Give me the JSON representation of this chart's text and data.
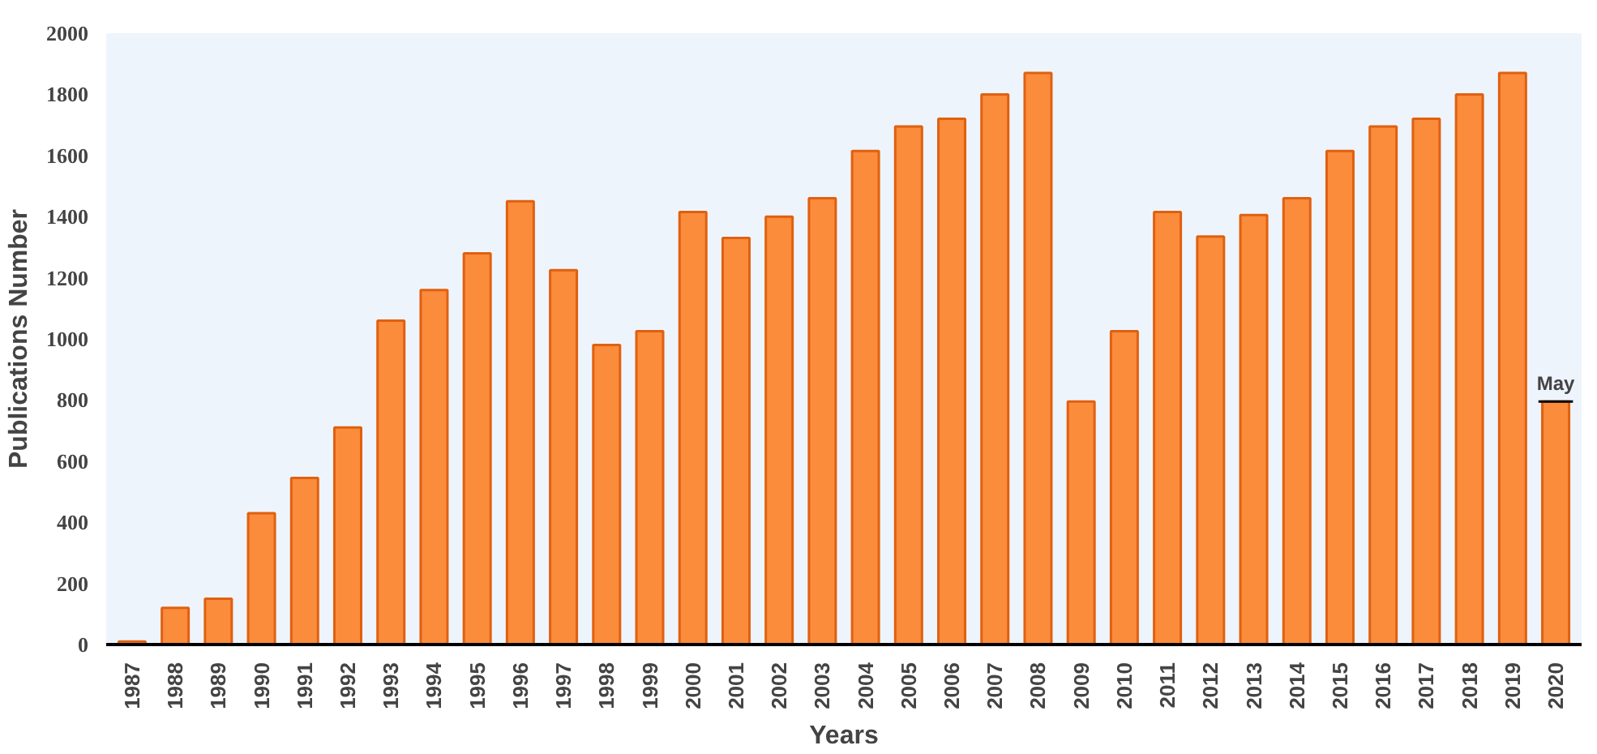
{
  "chart_data": {
    "type": "bar",
    "xlabel": "Years",
    "ylabel": "Publications Number",
    "categories": [
      "1987",
      "1988",
      "1989",
      "1990",
      "1991",
      "1992",
      "1993",
      "1994",
      "1995",
      "1996",
      "1997",
      "1998",
      "1999",
      "2000",
      "2001",
      "2002",
      "2003",
      "2004",
      "2005",
      "2006",
      "2007",
      "2008",
      "2009",
      "2010",
      "2011",
      "2012",
      "2013",
      "2014",
      "2015",
      "2016",
      "2017",
      "2018",
      "2019",
      "2020"
    ],
    "values": [
      10,
      120,
      150,
      430,
      545,
      710,
      1060,
      1160,
      1280,
      1450,
      1225,
      980,
      1025,
      1415,
      1330,
      1400,
      1460,
      1615,
      1695,
      1720,
      1800,
      1870,
      795,
      1025,
      1415,
      1335,
      1405,
      1460,
      1615,
      1695,
      1720,
      1800,
      1870,
      795
    ],
    "color": "#fa8c3c",
    "ylim": [
      0,
      2000
    ],
    "yticks": [
      0,
      200,
      400,
      600,
      800,
      1000,
      1200,
      1400,
      1600,
      1800,
      2000
    ],
    "grid": false,
    "annotations": [
      {
        "text": "May",
        "x": "2020",
        "y": 795
      }
    ]
  }
}
